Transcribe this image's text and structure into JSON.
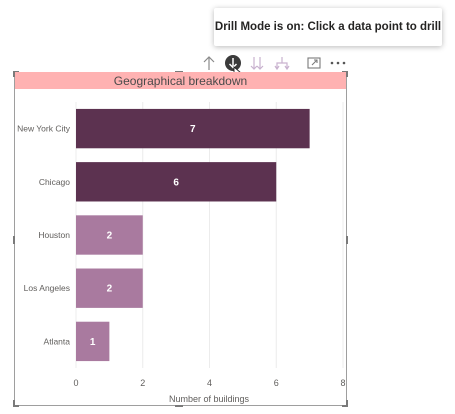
{
  "tooltip": {
    "text": "Drill Mode is on: Click a data point to drill"
  },
  "toolbar": {
    "icons": [
      "drill-up-icon",
      "drill-down-icon",
      "expand-next-level-icon",
      "expand-hierarchy-icon",
      "focus-mode-icon",
      "more-options-icon"
    ]
  },
  "colors": {
    "dark_bar": "#5c3250",
    "light_bar": "#a97a9f",
    "title_bg": "#ffb2b2",
    "drill_active": "#3b3b3b"
  },
  "chart_data": {
    "type": "bar",
    "orientation": "horizontal",
    "title": "Geographical breakdown",
    "xlabel": "Number of buildings",
    "ylabel": "",
    "categories": [
      "New York City",
      "Chicago",
      "Houston",
      "Los Angeles",
      "Atlanta"
    ],
    "values": [
      7,
      6,
      2,
      2,
      1
    ],
    "data_labels": [
      "7",
      "6",
      "2",
      "2",
      "1"
    ],
    "bar_shades": [
      "dark",
      "dark",
      "light",
      "light",
      "light"
    ],
    "xlim": [
      0,
      8
    ],
    "xticks": [
      "0",
      "2",
      "4",
      "6",
      "8"
    ],
    "grid": true,
    "legend": "none"
  }
}
